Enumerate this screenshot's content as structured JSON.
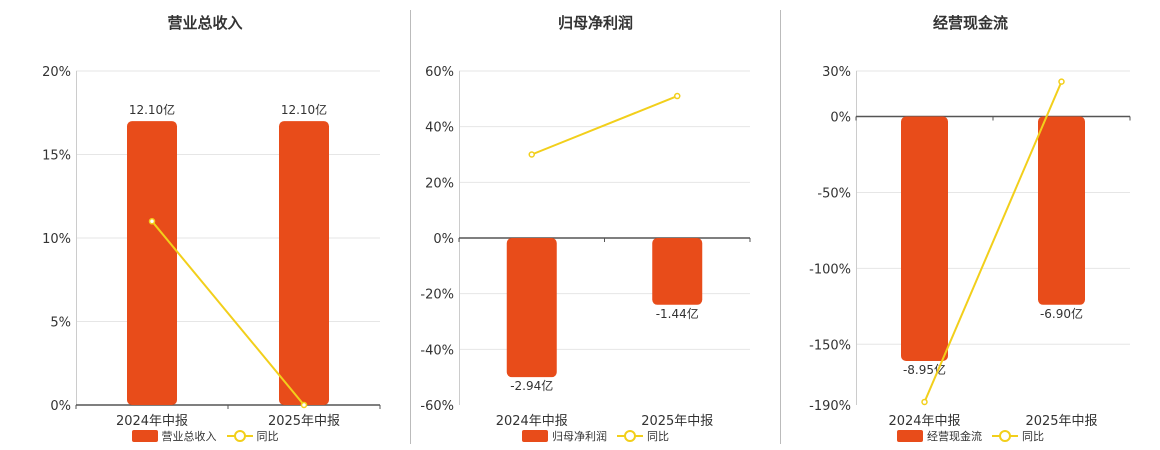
{
  "colors": {
    "bar": "#e84c1a",
    "line": "#f2cf1b",
    "axis": "#555555",
    "grid": "#e6e6e6",
    "text": "#333333"
  },
  "legend": {
    "line_label": "同比"
  },
  "chart_data": [
    {
      "type": "bar",
      "title": "营业总收入",
      "categories": [
        "2024年中报",
        "2025年中报"
      ],
      "bar_series": {
        "name": "营业总收入",
        "heights_pct": [
          17,
          17
        ],
        "labels": [
          "12.10亿",
          "12.10亿"
        ]
      },
      "line_series": {
        "name": "同比",
        "values_pct": [
          11,
          0
        ]
      },
      "ylim": [
        0,
        20
      ],
      "yticks": [
        0,
        5,
        10,
        15,
        20
      ],
      "ytick_labels": [
        "0%",
        "5%",
        "10%",
        "15%",
        "20%"
      ],
      "legend_position": "bottom"
    },
    {
      "type": "bar",
      "title": "归母净利润",
      "categories": [
        "2024年中报",
        "2025年中报"
      ],
      "bar_series": {
        "name": "归母净利润",
        "heights_pct": [
          -50,
          -24
        ],
        "labels": [
          "-2.94亿",
          "-1.44亿"
        ]
      },
      "line_series": {
        "name": "同比",
        "values_pct": [
          30,
          51
        ]
      },
      "ylim": [
        -60,
        60
      ],
      "yticks": [
        -60,
        -40,
        -20,
        0,
        20,
        40,
        60
      ],
      "ytick_labels": [
        "-60%",
        "-40%",
        "-20%",
        "0%",
        "20%",
        "40%",
        "60%"
      ],
      "legend_position": "bottom"
    },
    {
      "type": "bar",
      "title": "经营现金流",
      "categories": [
        "2024年中报",
        "2025年中报"
      ],
      "bar_series": {
        "name": "经营现金流",
        "heights_pct": [
          -161,
          -124
        ],
        "labels": [
          "-8.95亿",
          "-6.90亿"
        ]
      },
      "line_series": {
        "name": "同比",
        "values_pct": [
          -188,
          23
        ]
      },
      "ylim": [
        -190,
        30
      ],
      "yticks": [
        -190,
        -150,
        -100,
        -50,
        0,
        30
      ],
      "ytick_labels": [
        "-190%",
        "-150%",
        "-100%",
        "-50%",
        "0%",
        "30%"
      ],
      "legend_position": "bottom"
    }
  ]
}
